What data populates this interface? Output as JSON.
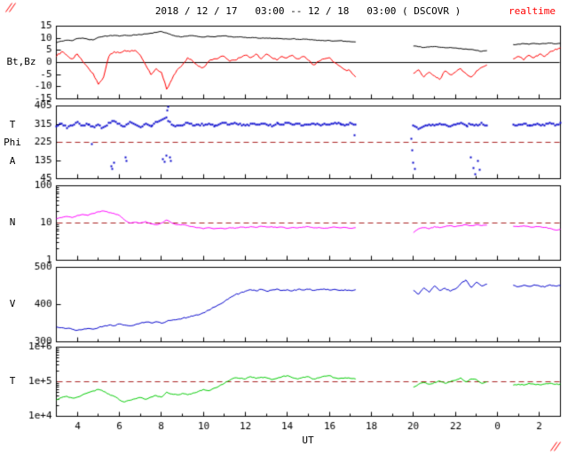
{
  "chart_data": {
    "type": "line",
    "title": "2018 / 12 / 17   03:00 -- 12 / 18   03:00 ( DSCOVR )",
    "realtime_label": "realtime",
    "xlabel": "UT",
    "x_start": 3,
    "x_end": 27,
    "dx": 0.25,
    "x_major_hours": [
      4,
      6,
      8,
      10,
      12,
      14,
      16,
      18,
      20,
      22,
      24,
      26
    ],
    "x_tick_labels": [
      "4",
      "6",
      "8",
      "10",
      "12",
      "14",
      "16",
      "18",
      "20",
      "22",
      "0",
      "2"
    ],
    "axis_color": "#000000",
    "background": "#ffffff",
    "dashed_line_color": "#aa2222",
    "corner_mark_color": "#ff0000",
    "panels": [
      {
        "id": "mag",
        "left_label": "Bt,Bz",
        "scale": "linear",
        "ymin": -15,
        "ymax": 15,
        "yticks": [
          15,
          10,
          5,
          0,
          -5,
          -10,
          -15
        ],
        "ytick_labels": [
          "15",
          "10",
          "5",
          "0",
          "-5",
          "-10",
          "-15"
        ],
        "zero_line": 0,
        "series": [
          {
            "name": "Bt",
            "color": "#000000",
            "jitter": 0.3,
            "values": [
              8.2,
              8.8,
              9.2,
              9.0,
              9.9,
              10.1,
              9.6,
              9.3,
              10.4,
              10.8,
              11.0,
              11.2,
              10.9,
              11.3,
              11.1,
              11.4,
              11.5,
              11.8,
              12.1,
              12.4,
              12.8,
              12.2,
              11.3,
              10.8,
              10.6,
              10.9,
              11.1,
              10.7,
              10.5,
              10.8,
              10.6,
              10.9,
              11.0,
              10.7,
              10.5,
              10.6,
              10.4,
              10.2,
              10.3,
              10.0,
              10.1,
              9.9,
              10.0,
              9.8,
              9.7,
              9.8,
              9.6,
              9.7,
              9.5,
              9.3,
              9.2,
              9.0,
              9.1,
              8.9,
              9.0,
              8.8,
              8.6,
              8.5,
              null,
              null,
              null,
              null,
              null,
              null,
              null,
              null,
              null,
              null,
              6.8,
              6.5,
              6.2,
              6.4,
              6.6,
              6.3,
              6.1,
              6.2,
              6.0,
              5.8,
              5.6,
              5.4,
              5.0,
              4.6,
              4.9,
              null,
              null,
              null,
              null,
              7.4,
              7.6,
              7.8,
              7.5,
              7.9,
              7.6,
              7.8,
              8.0,
              7.7,
              7.9
            ]
          },
          {
            "name": "Bz",
            "color": "#ff0000",
            "jitter": 0.8,
            "values": [
              2.5,
              4.5,
              3.0,
              1.5,
              3.5,
              0.5,
              -2.0,
              -4.5,
              -9.0,
              -6.0,
              2.5,
              4.5,
              4.0,
              5.0,
              4.5,
              5.0,
              3.0,
              -1.0,
              -5.0,
              -2.5,
              -4.0,
              -11.0,
              -7.0,
              -3.0,
              -1.0,
              2.0,
              0.5,
              -1.5,
              -2.0,
              0.5,
              1.5,
              2.0,
              2.5,
              0.5,
              1.0,
              2.0,
              3.0,
              2.0,
              3.5,
              1.5,
              3.5,
              2.0,
              1.0,
              2.5,
              2.0,
              3.0,
              1.5,
              2.5,
              1.0,
              -1.0,
              0.5,
              1.5,
              2.0,
              0.0,
              -1.5,
              -3.0,
              -3.5,
              -6.0,
              null,
              null,
              null,
              null,
              null,
              null,
              null,
              null,
              null,
              null,
              -4.5,
              -3.0,
              -6.0,
              -4.0,
              -5.5,
              -7.0,
              -3.5,
              -5.0,
              -4.0,
              -2.5,
              -4.5,
              -6.0,
              -3.5,
              -2.0,
              -1.0,
              null,
              null,
              null,
              null,
              1.5,
              2.5,
              1.0,
              3.0,
              2.0,
              3.5,
              2.5,
              4.5,
              5.5,
              6.0
            ]
          }
        ]
      },
      {
        "id": "phi",
        "left_labels": [
          "T",
          "Phi",
          "A"
        ],
        "scale": "linear",
        "ymin": 45,
        "ymax": 405,
        "yticks": [
          405,
          315,
          225,
          135,
          45
        ],
        "ytick_labels": [
          "405",
          "315",
          "225",
          "135",
          "45"
        ],
        "dashed_line": 225,
        "series": [
          {
            "name": "Phi",
            "color": "#0000cc",
            "style": "dots",
            "jitter": 9,
            "values": [
              305,
              318,
              298,
              312,
              322,
              308,
              315,
              300,
              310,
              295,
              320,
              330,
              315,
              305,
              325,
              310,
              300,
              318,
              308,
              322,
              335,
              345,
              315,
              305,
              312,
              320,
              308,
              315,
              310,
              318,
              305,
              312,
              320,
              310,
              325,
              315,
              308,
              318,
              312,
              320,
              315,
              305,
              318,
              310,
              322,
              312,
              318,
              308,
              315,
              320,
              310,
              318,
              312,
              322,
              315,
              308,
              318,
              312,
              null,
              null,
              null,
              null,
              null,
              null,
              null,
              null,
              null,
              null,
              310,
              290,
              305,
              315,
              308,
              318,
              310,
              305,
              312,
              320,
              308,
              315,
              310,
              318,
              312,
              null,
              null,
              null,
              null,
              315,
              310,
              318,
              308,
              312,
              315,
              310,
              320,
              312,
              318
            ],
            "extra_points": [
              [
                4.7,
                215
              ],
              [
                5.6,
                108
              ],
              [
                5.65,
                95
              ],
              [
                5.75,
                122
              ],
              [
                6.3,
                150
              ],
              [
                6.35,
                132
              ],
              [
                8.05,
                142
              ],
              [
                8.15,
                128
              ],
              [
                8.25,
                158
              ],
              [
                8.3,
                385
              ],
              [
                8.33,
                400
              ],
              [
                8.4,
                152
              ],
              [
                8.45,
                134
              ],
              [
                17.2,
                262
              ],
              [
                19.9,
                242
              ],
              [
                19.95,
                185
              ],
              [
                20.0,
                122
              ],
              [
                20.05,
                95
              ],
              [
                22.75,
                152
              ],
              [
                22.85,
                98
              ],
              [
                22.95,
                68
              ],
              [
                23.05,
                132
              ],
              [
                23.15,
                90
              ]
            ]
          }
        ]
      },
      {
        "id": "density",
        "left_label": "N",
        "scale": "log",
        "ymin": 1,
        "ymax": 100,
        "yticks": [
          100,
          10,
          1
        ],
        "ytick_labels": [
          "100",
          "10",
          "1"
        ],
        "dashed_line": 10,
        "series": [
          {
            "name": "N",
            "color": "#ff00ff",
            "jitter": 0.05,
            "values": [
              13,
              14,
              15,
              14,
              16,
              17,
              16,
              18,
              20,
              21,
              19,
              18,
              16,
              12,
              10,
              10.5,
              10,
              11,
              9.5,
              9,
              10,
              12,
              10,
              9,
              9,
              8.5,
              8,
              7.5,
              7,
              7.5,
              7,
              7.2,
              7,
              7.5,
              7.2,
              7.8,
              7.5,
              8,
              7.6,
              8.2,
              7.8,
              8,
              7.5,
              7.8,
              7.2,
              7.6,
              7.4,
              7.8,
              8,
              7.4,
              7.6,
              7.2,
              7.5,
              7.8,
              7.4,
              7.6,
              7.2,
              7.5,
              null,
              null,
              null,
              null,
              null,
              null,
              null,
              null,
              null,
              null,
              5.5,
              7,
              7.5,
              7,
              8,
              7.5,
              8,
              8.5,
              8,
              8.5,
              9,
              8.5,
              9,
              8.5,
              8.8,
              null,
              null,
              null,
              null,
              8.2,
              8,
              8.4,
              8,
              7.8,
              8,
              7.6,
              7.2,
              6.5,
              6.8
            ]
          }
        ]
      },
      {
        "id": "speed",
        "left_label": "V",
        "scale": "linear",
        "ymin": 300,
        "ymax": 500,
        "yticks": [
          500,
          400,
          300
        ],
        "ytick_labels": [
          "500",
          "400",
          "300"
        ],
        "series": [
          {
            "name": "V",
            "color": "#0000cc",
            "jitter": 3,
            "values": [
              340,
              338,
              336,
              334,
              331,
              333,
              336,
              334,
              338,
              342,
              345,
              343,
              348,
              345,
              343,
              346,
              350,
              353,
              351,
              354,
              350,
              355,
              358,
              360,
              363,
              366,
              369,
              372,
              378,
              385,
              393,
              400,
              408,
              418,
              426,
              431,
              436,
              440,
              437,
              441,
              436,
              439,
              442,
              438,
              440,
              437,
              441,
              439,
              441,
              438,
              440,
              442,
              439,
              441,
              438,
              440,
              438,
              440,
              null,
              null,
              null,
              null,
              null,
              null,
              null,
              null,
              null,
              null,
              438,
              428,
              445,
              433,
              450,
              438,
              444,
              436,
              442,
              456,
              466,
              446,
              460,
              450,
              455,
              null,
              null,
              null,
              null,
              452,
              448,
              452,
              449,
              453,
              450,
              447,
              453,
              450,
              451
            ]
          }
        ]
      },
      {
        "id": "temp",
        "left_label": "T",
        "scale": "log",
        "ymin": 10000,
        "ymax": 1000000,
        "yticks": [
          1000000,
          100000,
          10000
        ],
        "ytick_labels": [
          "1e+6",
          "1e+5",
          "1e+4"
        ],
        "dashed_line": 100000,
        "series": [
          {
            "name": "T",
            "color": "#00cc00",
            "jitter": 0.07,
            "values": [
              30000,
              35000,
              38000,
              34000,
              36000,
              42000,
              48000,
              54000,
              60000,
              52000,
              44000,
              38000,
              30000,
              26000,
              29000,
              32000,
              35000,
              31000,
              36000,
              40000,
              36000,
              50000,
              44000,
              42000,
              46000,
              42000,
              47000,
              52000,
              60000,
              55000,
              65000,
              75000,
              90000,
              110000,
              130000,
              125000,
              120000,
              140000,
              125000,
              135000,
              130000,
              115000,
              125000,
              140000,
              150000,
              130000,
              120000,
              135000,
              140000,
              120000,
              130000,
              145000,
              150000,
              130000,
              125000,
              130000,
              125000,
              120000,
              null,
              null,
              null,
              null,
              null,
              null,
              null,
              null,
              null,
              null,
              70000,
              85000,
              95000,
              85000,
              95000,
              105000,
              90000,
              100000,
              110000,
              130000,
              100000,
              120000,
              115000,
              90000,
              100000,
              null,
              null,
              null,
              null,
              80000,
              85000,
              80000,
              90000,
              85000,
              82000,
              86000,
              90000,
              84000,
              86000
            ]
          }
        ]
      }
    ]
  }
}
